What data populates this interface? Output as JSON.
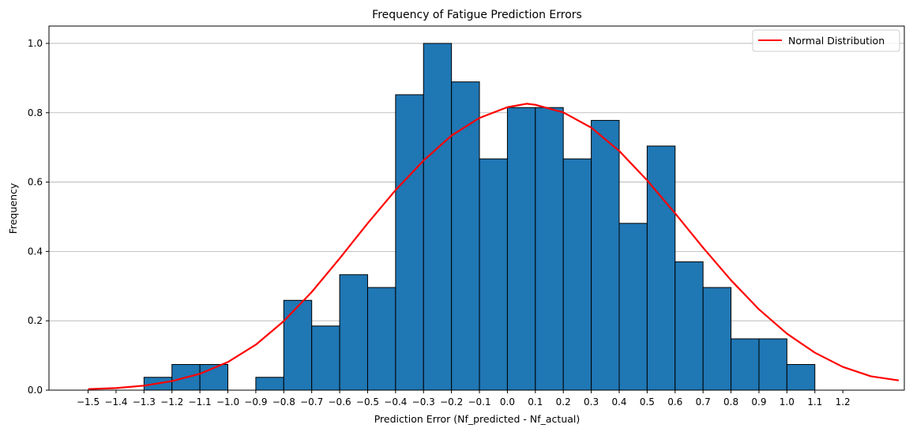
{
  "chart_data": {
    "type": "bar",
    "title": "Frequency of Fatigue Prediction Errors",
    "xlabel": "Prediction Error (Nf_predicted - Nf_actual)",
    "ylabel": "Frequency",
    "xlim": [
      -1.64,
      1.42
    ],
    "ylim": [
      0,
      1.05
    ],
    "grid": "y",
    "legend_position": "top-right",
    "bar_color": "#1f77b4",
    "bar_edge_color": "#000000",
    "x_ticks": [
      -1.5,
      -1.4,
      -1.3,
      -1.2,
      -1.1,
      -1.0,
      -0.9,
      -0.8,
      -0.7,
      -0.6,
      -0.5,
      -0.4,
      -0.3,
      -0.2,
      -0.1,
      0.0,
      0.1,
      0.2,
      0.3,
      0.4,
      0.5,
      0.6,
      0.7,
      0.8,
      0.9,
      1.0,
      1.1,
      1.2
    ],
    "x_tick_labels": [
      "−1.5",
      "−1.4",
      "−1.3",
      "−1.2",
      "−1.1",
      "−1.0",
      "−0.9",
      "−0.8",
      "−0.7",
      "−0.6",
      "−0.5",
      "−0.4",
      "−0.3",
      "−0.2",
      "−0.1",
      "0.0",
      "0.1",
      "0.2",
      "0.3",
      "0.4",
      "0.5",
      "0.6",
      "0.7",
      "0.8",
      "0.9",
      "1.0",
      "1.1",
      "1.2"
    ],
    "y_ticks": [
      0.0,
      0.2,
      0.4,
      0.6,
      0.8,
      1.0
    ],
    "y_tick_labels": [
      "0.0",
      "0.2",
      "0.4",
      "0.6",
      "0.8",
      "1.0"
    ],
    "bins": [
      {
        "left": -1.3,
        "right": -1.2,
        "value": 0.037
      },
      {
        "left": -1.2,
        "right": -1.1,
        "value": 0.074
      },
      {
        "left": -1.1,
        "right": -1.0,
        "value": 0.074
      },
      {
        "left": -0.9,
        "right": -0.8,
        "value": 0.037
      },
      {
        "left": -0.8,
        "right": -0.7,
        "value": 0.259
      },
      {
        "left": -0.7,
        "right": -0.6,
        "value": 0.185
      },
      {
        "left": -0.6,
        "right": -0.5,
        "value": 0.333
      },
      {
        "left": -0.5,
        "right": -0.4,
        "value": 0.296
      },
      {
        "left": -0.4,
        "right": -0.3,
        "value": 0.852
      },
      {
        "left": -0.3,
        "right": -0.2,
        "value": 1.0
      },
      {
        "left": -0.2,
        "right": -0.1,
        "value": 0.889
      },
      {
        "left": -0.1,
        "right": 0.0,
        "value": 0.667
      },
      {
        "left": 0.0,
        "right": 0.1,
        "value": 0.815
      },
      {
        "left": 0.1,
        "right": 0.2,
        "value": 0.815
      },
      {
        "left": 0.2,
        "right": 0.3,
        "value": 0.667
      },
      {
        "left": 0.3,
        "right": 0.4,
        "value": 0.778
      },
      {
        "left": 0.4,
        "right": 0.5,
        "value": 0.481
      },
      {
        "left": 0.5,
        "right": 0.6,
        "value": 0.704
      },
      {
        "left": 0.6,
        "right": 0.7,
        "value": 0.37
      },
      {
        "left": 0.7,
        "right": 0.8,
        "value": 0.296
      },
      {
        "left": 0.8,
        "right": 0.9,
        "value": 0.148
      },
      {
        "left": 0.9,
        "right": 1.0,
        "value": 0.148
      },
      {
        "left": 1.0,
        "right": 1.1,
        "value": 0.074
      }
    ],
    "series": [
      {
        "name": "Normal Distribution",
        "type": "line",
        "color": "#ff0000",
        "x": [
          -1.5,
          -1.4,
          -1.3,
          -1.2,
          -1.1,
          -1.0,
          -0.9,
          -0.8,
          -0.7,
          -0.6,
          -0.5,
          -0.4,
          -0.3,
          -0.2,
          -0.1,
          0.0,
          0.07,
          0.1,
          0.2,
          0.3,
          0.4,
          0.5,
          0.6,
          0.7,
          0.8,
          0.9,
          1.0,
          1.1,
          1.2,
          1.3,
          1.4
        ],
        "y": [
          0.003,
          0.006,
          0.013,
          0.026,
          0.047,
          0.081,
          0.131,
          0.199,
          0.283,
          0.38,
          0.481,
          0.577,
          0.662,
          0.734,
          0.785,
          0.816,
          0.826,
          0.823,
          0.801,
          0.757,
          0.69,
          0.605,
          0.51,
          0.411,
          0.317,
          0.233,
          0.163,
          0.108,
          0.067,
          0.04,
          0.028
        ]
      }
    ]
  }
}
